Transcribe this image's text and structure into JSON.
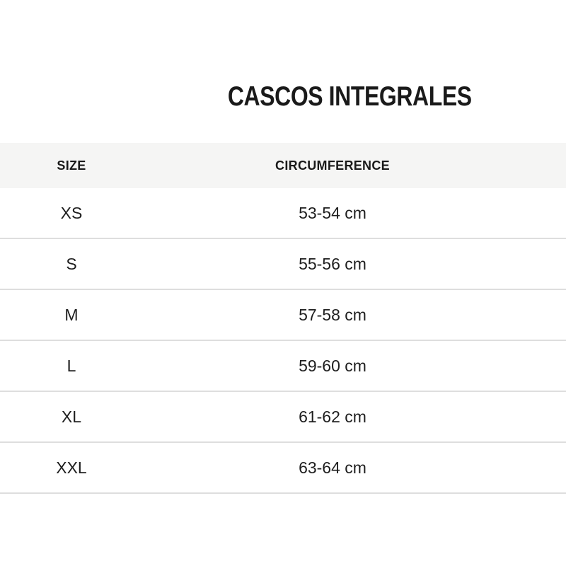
{
  "page": {
    "background_color": "#ffffff",
    "title": "CASCOS INTEGRALES",
    "title_color": "#1a1a1a"
  },
  "table": {
    "header_bg_color": "#f5f5f4",
    "row_divider_color": "#dedede",
    "text_color": "#1e1e1e",
    "headers": {
      "size": "SIZE",
      "circumference": "CIRCUMFERENCE"
    },
    "rows": [
      {
        "size": "XS",
        "circumference": "53-54 cm"
      },
      {
        "size": "S",
        "circumference": "55-56 cm"
      },
      {
        "size": "M",
        "circumference": "57-58 cm"
      },
      {
        "size": "L",
        "circumference": "59-60 cm"
      },
      {
        "size": "XL",
        "circumference": "61-62 cm"
      },
      {
        "size": "XXL",
        "circumference": "63-64 cm"
      }
    ]
  }
}
